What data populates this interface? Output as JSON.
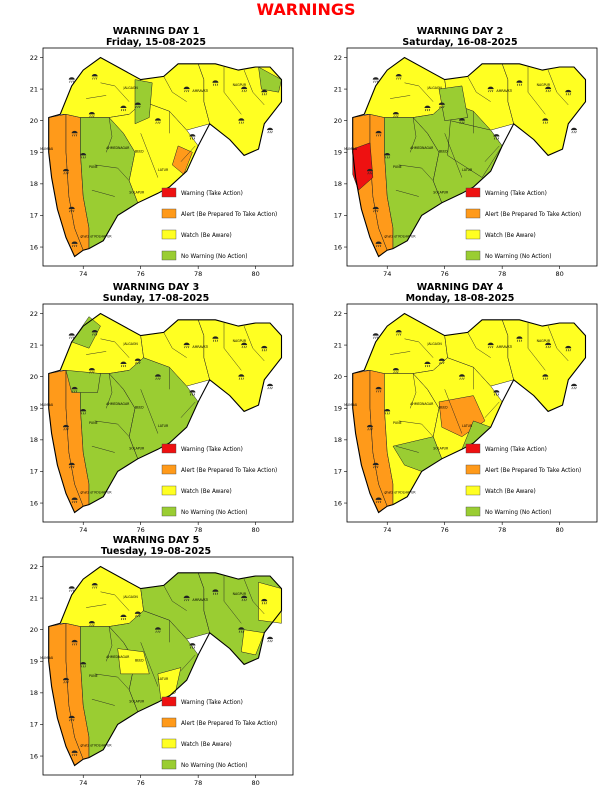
{
  "title": "WARNINGS",
  "colors": {
    "warning": "#ee1111",
    "alert": "#ff9a1a",
    "watch": "#ffff22",
    "no_warning": "#9acd32"
  },
  "legend": [
    {
      "key": "warning",
      "label": "Warning (Take Action)"
    },
    {
      "key": "alert",
      "label": "Alert (Be Prepared To Take Action)"
    },
    {
      "key": "watch",
      "label": "Watch (Be Aware)"
    },
    {
      "key": "no_warning",
      "label": "No Warning (No Action)"
    }
  ],
  "x_ticks": [
    "74",
    "76",
    "78",
    "80"
  ],
  "y_ticks": [
    "22",
    "21",
    "20",
    "19",
    "18",
    "17",
    "16"
  ],
  "map_labels": {
    "mumbai": "MUMBAI",
    "kolhapur": "ghats of KOLHAPUR",
    "jalgaon": "JALGAON",
    "ahmednagar": "AHMEDNAGAR",
    "nagpur": "NAGPUR",
    "amravati": "AMRAVATI",
    "solapur": "SOLAPUR",
    "pune": "PUNE",
    "beed": "BEED",
    "latur": "LATUR"
  },
  "days": [
    {
      "title": "WARNING DAY 1",
      "date": "Friday, 15-08-2025"
    },
    {
      "title": "WARNING DAY 2",
      "date": "Saturday, 16-08-2025"
    },
    {
      "title": "WARNING DAY 3",
      "date": "Sunday, 17-08-2025"
    },
    {
      "title": "WARNING DAY 4",
      "date": "Monday, 18-08-2025"
    },
    {
      "title": "WARNING DAY 5",
      "date": "Tuesday, 19-08-2025"
    }
  ]
}
